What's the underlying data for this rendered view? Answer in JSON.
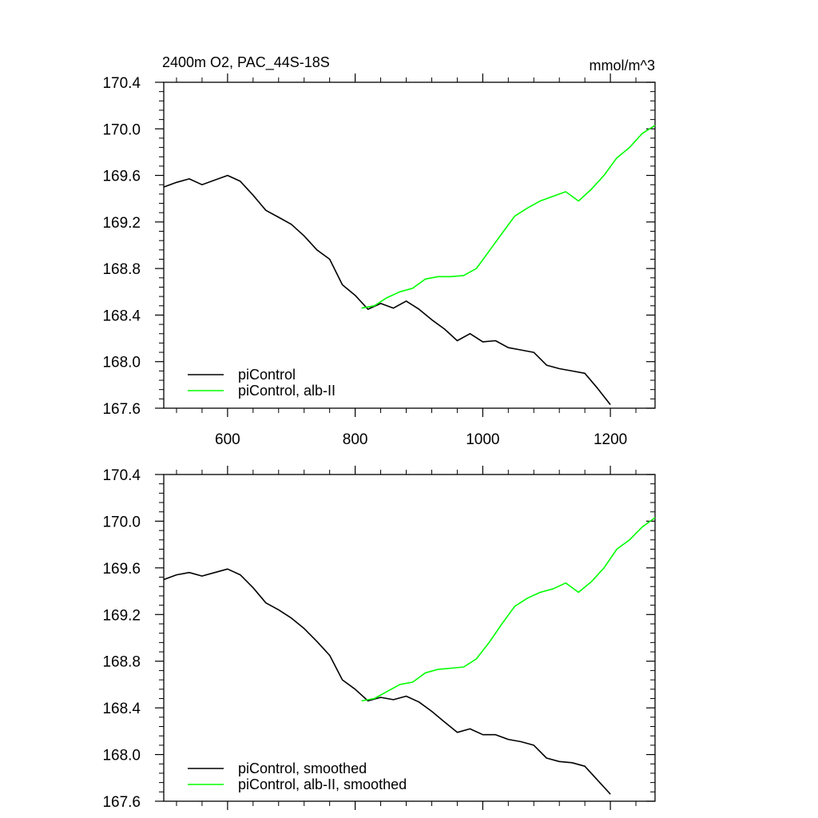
{
  "chart_data": [
    {
      "type": "line",
      "title": "2400m O2, PAC_44S-18S",
      "units": "mmol/m^3",
      "xlim": [
        500,
        1270
      ],
      "ylim": [
        167.6,
        170.4
      ],
      "x_ticks": [
        600,
        800,
        1000,
        1200
      ],
      "x_tick_labels": [
        "600",
        "800",
        "1000",
        "1200"
      ],
      "y_ticks": [
        167.6,
        168.0,
        168.4,
        168.8,
        169.2,
        169.6,
        170.0,
        170.4
      ],
      "y_tick_labels": [
        "167.6",
        "168.0",
        "168.4",
        "168.8",
        "169.2",
        "169.6",
        "170.0",
        "170.4"
      ],
      "grid": false,
      "legend_position": "bottom-left",
      "series": [
        {
          "name": "piControl",
          "color": "#000000",
          "x": [
            500,
            520,
            540,
            560,
            580,
            600,
            620,
            640,
            660,
            680,
            700,
            720,
            740,
            760,
            780,
            800,
            820,
            840,
            860,
            880,
            900,
            920,
            940,
            960,
            980,
            1000,
            1020,
            1040,
            1060,
            1080,
            1100,
            1120,
            1140,
            1160,
            1180,
            1200
          ],
          "y": [
            169.5,
            169.54,
            169.57,
            169.52,
            169.56,
            169.6,
            169.55,
            169.43,
            169.3,
            169.24,
            169.18,
            169.08,
            168.96,
            168.88,
            168.66,
            168.57,
            168.45,
            168.5,
            168.46,
            168.52,
            168.45,
            168.36,
            168.28,
            168.18,
            168.24,
            168.17,
            168.18,
            168.12,
            168.1,
            168.08,
            167.97,
            167.94,
            167.92,
            167.9,
            167.77,
            167.63
          ]
        },
        {
          "name": "piControl, alb-II",
          "color": "#00ff00",
          "x": [
            810,
            830,
            850,
            870,
            890,
            910,
            930,
            950,
            970,
            990,
            1010,
            1030,
            1050,
            1070,
            1090,
            1110,
            1130,
            1150,
            1170,
            1190,
            1210,
            1230,
            1250,
            1270
          ],
          "y": [
            168.46,
            168.48,
            168.55,
            168.6,
            168.63,
            168.71,
            168.73,
            168.73,
            168.74,
            168.8,
            168.95,
            169.1,
            169.25,
            169.32,
            169.38,
            169.42,
            169.46,
            169.38,
            169.48,
            169.6,
            169.75,
            169.84,
            169.96,
            170.03
          ]
        }
      ]
    },
    {
      "type": "line",
      "xlim": [
        500,
        1270
      ],
      "ylim": [
        167.6,
        170.4
      ],
      "x_ticks": [
        600,
        800,
        1000,
        1200
      ],
      "y_ticks": [
        167.6,
        168.0,
        168.4,
        168.8,
        169.2,
        169.6,
        170.0,
        170.4
      ],
      "y_tick_labels": [
        "167.6",
        "168.0",
        "168.4",
        "168.8",
        "169.2",
        "169.6",
        "170.0",
        "170.4"
      ],
      "grid": false,
      "legend_position": "bottom-left",
      "series": [
        {
          "name": "piControl, smoothed",
          "color": "#000000",
          "x": [
            500,
            520,
            540,
            560,
            580,
            600,
            620,
            640,
            660,
            680,
            700,
            720,
            740,
            760,
            780,
            800,
            820,
            840,
            860,
            880,
            900,
            920,
            940,
            960,
            980,
            1000,
            1020,
            1040,
            1060,
            1080,
            1100,
            1120,
            1140,
            1160,
            1180,
            1200
          ],
          "y": [
            169.5,
            169.54,
            169.56,
            169.53,
            169.56,
            169.59,
            169.54,
            169.43,
            169.3,
            169.24,
            169.17,
            169.08,
            168.97,
            168.85,
            168.64,
            168.56,
            168.46,
            168.49,
            168.47,
            168.5,
            168.45,
            168.37,
            168.28,
            168.19,
            168.22,
            168.17,
            168.17,
            168.13,
            168.11,
            168.08,
            167.97,
            167.94,
            167.93,
            167.9,
            167.78,
            167.66
          ]
        },
        {
          "name": "piControl, alb-II, smoothed",
          "color": "#00ff00",
          "x": [
            810,
            830,
            850,
            870,
            890,
            910,
            930,
            950,
            970,
            990,
            1010,
            1030,
            1050,
            1070,
            1090,
            1110,
            1130,
            1150,
            1170,
            1190,
            1210,
            1230,
            1250,
            1270
          ],
          "y": [
            168.46,
            168.48,
            168.54,
            168.6,
            168.62,
            168.7,
            168.73,
            168.74,
            168.75,
            168.82,
            168.96,
            169.12,
            169.27,
            169.34,
            169.39,
            169.42,
            169.47,
            169.39,
            169.48,
            169.6,
            169.76,
            169.84,
            169.95,
            170.03
          ]
        }
      ]
    }
  ]
}
